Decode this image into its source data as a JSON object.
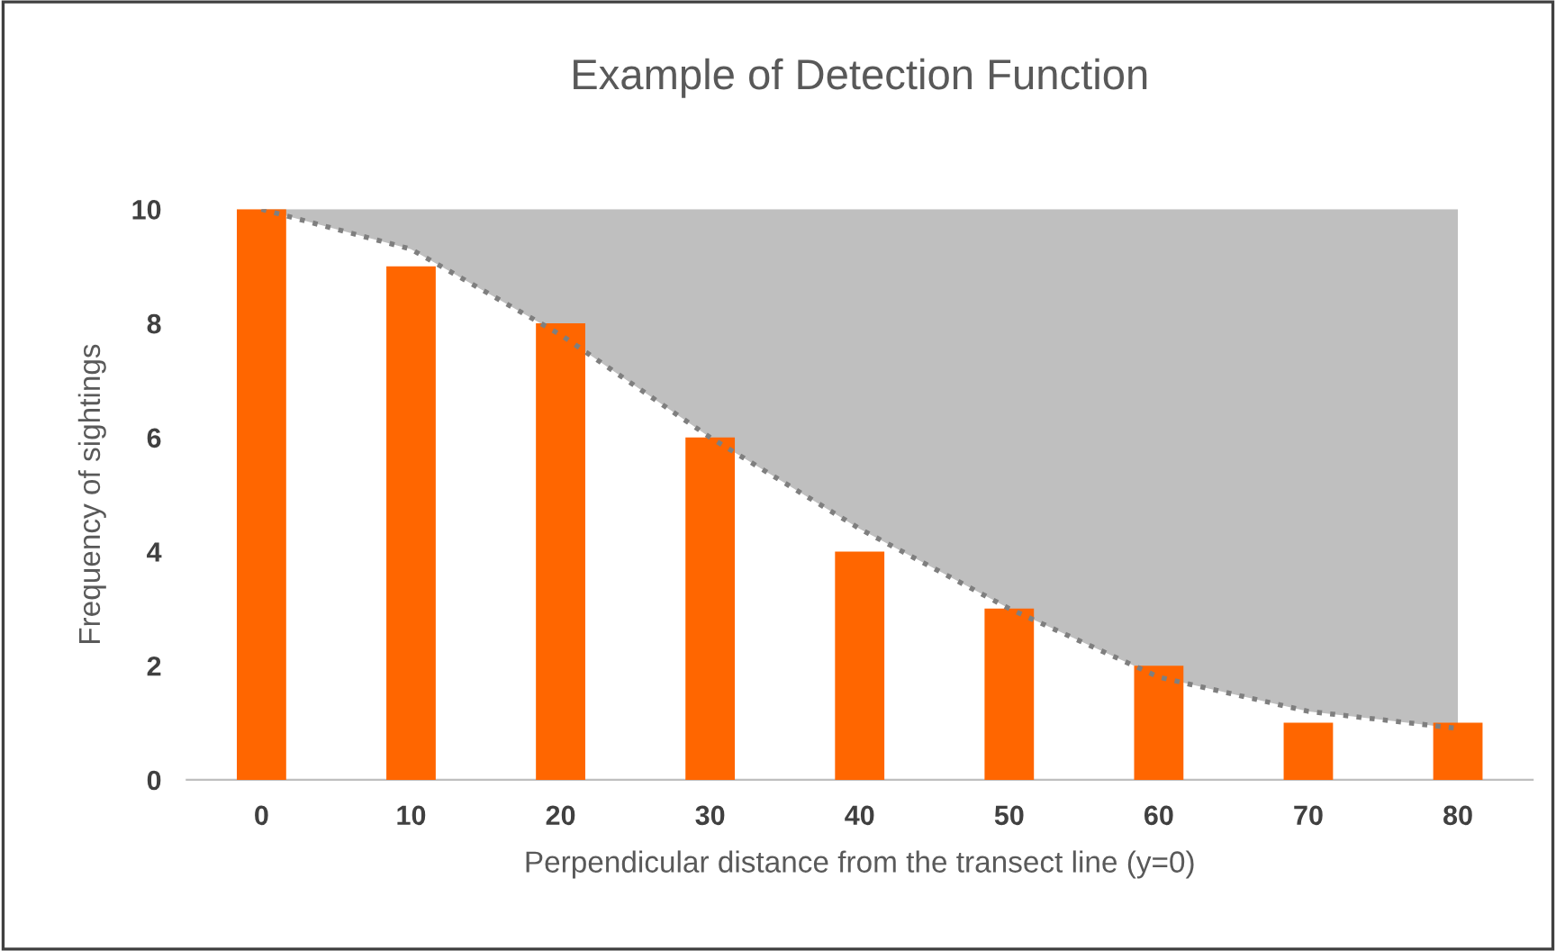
{
  "chart_data": {
    "type": "bar",
    "title": "Example of Detection Function",
    "xlabel": "Perpendicular distance from the transect line (y=0)",
    "ylabel": "Frequency of sightings",
    "categories": [
      "0",
      "10",
      "20",
      "30",
      "40",
      "50",
      "60",
      "70",
      "80"
    ],
    "series": [
      {
        "color": "#ff6600",
        "values": [
          10,
          9,
          8,
          6,
          4,
          3,
          2,
          1,
          1
        ]
      },
      {
        "type": "line",
        "color": "#7f7f7f",
        "line_style": "dotted",
        "values": [
          10,
          9.3,
          7.8,
          6,
          4.4,
          3,
          1.8,
          1.2,
          0.9
        ],
        "lower": [
          10,
          9.3,
          7.8,
          6,
          4.4,
          3,
          1.8,
          1.2,
          0.9
        ],
        "upper": [
          10,
          10,
          10,
          10,
          10,
          10,
          10,
          10,
          10
        ]
      }
    ],
    "ylim": [
      0,
      10
    ],
    "yticks": [
      0,
      2,
      4,
      6,
      8,
      10
    ],
    "grid": false,
    "legend": false
  }
}
